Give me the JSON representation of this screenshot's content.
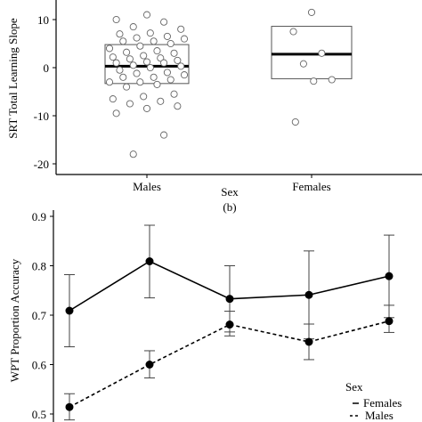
{
  "chart_data": [
    {
      "type": "scatter",
      "subtype": "strip-with-box",
      "title": "",
      "xlabel": "Sex",
      "ylabel": "SRT Total Learning Slope",
      "categories": [
        "Males",
        "Females"
      ],
      "yticks": [
        -20,
        -10,
        0,
        10
      ],
      "ylim": [
        -21,
        14
      ],
      "grid": false,
      "boxes": [
        {
          "category": "Males",
          "q1": -3.3,
          "median": 0.3,
          "q3": 4.8
        },
        {
          "category": "Females",
          "q1": -2.3,
          "median": 2.8,
          "q3": 8.6
        }
      ],
      "points": [
        {
          "category": "Males",
          "values": [
            11.0,
            10.0,
            9.5,
            8.5,
            8.0,
            7.2,
            7.0,
            6.5,
            6.2,
            6.0,
            5.5,
            5.5,
            5.0,
            4.5,
            4.0,
            3.5,
            3.2,
            3.0,
            2.5,
            2.2,
            2.0,
            1.8,
            1.5,
            1.2,
            1.0,
            1.0,
            0.5,
            0.3,
            0.0,
            -0.5,
            -1.0,
            -1.2,
            -1.5,
            -2.0,
            -2.0,
            -2.5,
            -3.0,
            -3.0,
            -3.5,
            -4.0,
            -5.5,
            -6.0,
            -6.5,
            -7.0,
            -7.5,
            -8.0,
            -8.5,
            -9.5,
            -14.0,
            -18.0
          ]
        },
        {
          "category": "Females",
          "values": [
            11.5,
            7.5,
            3.0,
            0.8,
            -2.5,
            -2.8,
            -11.3
          ]
        }
      ],
      "panel_label": "(b)"
    },
    {
      "type": "line",
      "title": "",
      "xlabel": "",
      "ylabel": "WPT Proportion Accuracy",
      "yticks": [
        0.5,
        0.6,
        0.7,
        0.8,
        0.9
      ],
      "ylim": [
        0.49,
        0.915
      ],
      "grid": false,
      "x": [
        1,
        2,
        3,
        4,
        5
      ],
      "series": [
        {
          "name": "Females",
          "line_style": "solid",
          "values": [
            0.709,
            0.809,
            0.733,
            0.741,
            0.779
          ],
          "err_low": [
            0.636,
            0.735,
            0.666,
            0.652,
            0.695
          ],
          "err_high": [
            0.782,
            0.882,
            0.8,
            0.83,
            0.862
          ]
        },
        {
          "name": "Males",
          "line_style": "dashed",
          "values": [
            0.514,
            0.6,
            0.681,
            0.646,
            0.688
          ],
          "err_low": [
            0.488,
            0.573,
            0.658,
            0.61,
            0.665
          ],
          "err_high": [
            0.541,
            0.628,
            0.708,
            0.682,
            0.72
          ]
        }
      ],
      "legend": {
        "title": "Sex",
        "position": "bottom-right",
        "entries": [
          {
            "label": "Females",
            "style": "solid"
          },
          {
            "label": "Males",
            "style": "dashed"
          }
        ]
      }
    }
  ]
}
